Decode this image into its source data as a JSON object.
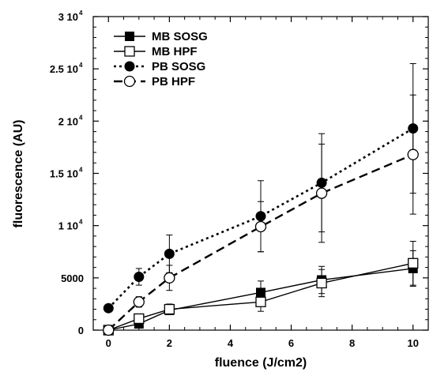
{
  "chart_data": {
    "type": "line",
    "title": "",
    "xlabel": "fluence (J/cm2)",
    "ylabel": "fluorescence (AU)",
    "xlim": [
      -0.5,
      10.5
    ],
    "ylim": [
      0,
      30000
    ],
    "x_ticks": [
      {
        "value": 0,
        "label": "0"
      },
      {
        "value": 2,
        "label": "2"
      },
      {
        "value": 4,
        "label": "4"
      },
      {
        "value": 6,
        "label": "6"
      },
      {
        "value": 8,
        "label": "8"
      },
      {
        "value": 10,
        "label": "10"
      }
    ],
    "y_ticks": [
      {
        "value": 0,
        "label": "0",
        "exp": ""
      },
      {
        "value": 5000,
        "label": "5000",
        "exp": ""
      },
      {
        "value": 10000,
        "label": "1 10",
        "exp": "4"
      },
      {
        "value": 15000,
        "label": "1.5 10",
        "exp": "4"
      },
      {
        "value": 20000,
        "label": "2 10",
        "exp": "4"
      },
      {
        "value": 25000,
        "label": "2.5 10",
        "exp": "4"
      },
      {
        "value": 30000,
        "label": "3 10",
        "exp": "4"
      }
    ],
    "legend_position": "top-left",
    "series": [
      {
        "name": "MB SOSG",
        "marker": "square-filled",
        "line": "solid",
        "x": [
          0,
          1,
          2,
          5,
          7,
          10
        ],
        "y": [
          0,
          600,
          1900,
          3600,
          4800,
          5900
        ],
        "err": [
          0,
          200,
          400,
          1100,
          1300,
          1700
        ]
      },
      {
        "name": "MB HPF",
        "marker": "square-open",
        "line": "solid",
        "x": [
          0,
          1,
          2,
          5,
          7,
          10
        ],
        "y": [
          0,
          1100,
          2000,
          2700,
          4500,
          6400
        ],
        "err": [
          0,
          300,
          500,
          900,
          1300,
          2100
        ]
      },
      {
        "name": "PB SOSG",
        "marker": "circle-filled",
        "line": "dotted",
        "x": [
          0,
          1,
          2,
          5,
          7,
          10
        ],
        "y": [
          2100,
          5100,
          7300,
          10900,
          14100,
          19300
        ],
        "err": [
          300,
          800,
          1800,
          3400,
          4700,
          6200
        ]
      },
      {
        "name": "PB HPF",
        "marker": "circle-open",
        "line": "dashed",
        "x": [
          0,
          1,
          2,
          5,
          7,
          10
        ],
        "y": [
          0,
          2700,
          5000,
          9900,
          13100,
          16800
        ],
        "err": [
          0,
          500,
          1200,
          2400,
          4700,
          5700
        ]
      }
    ]
  }
}
